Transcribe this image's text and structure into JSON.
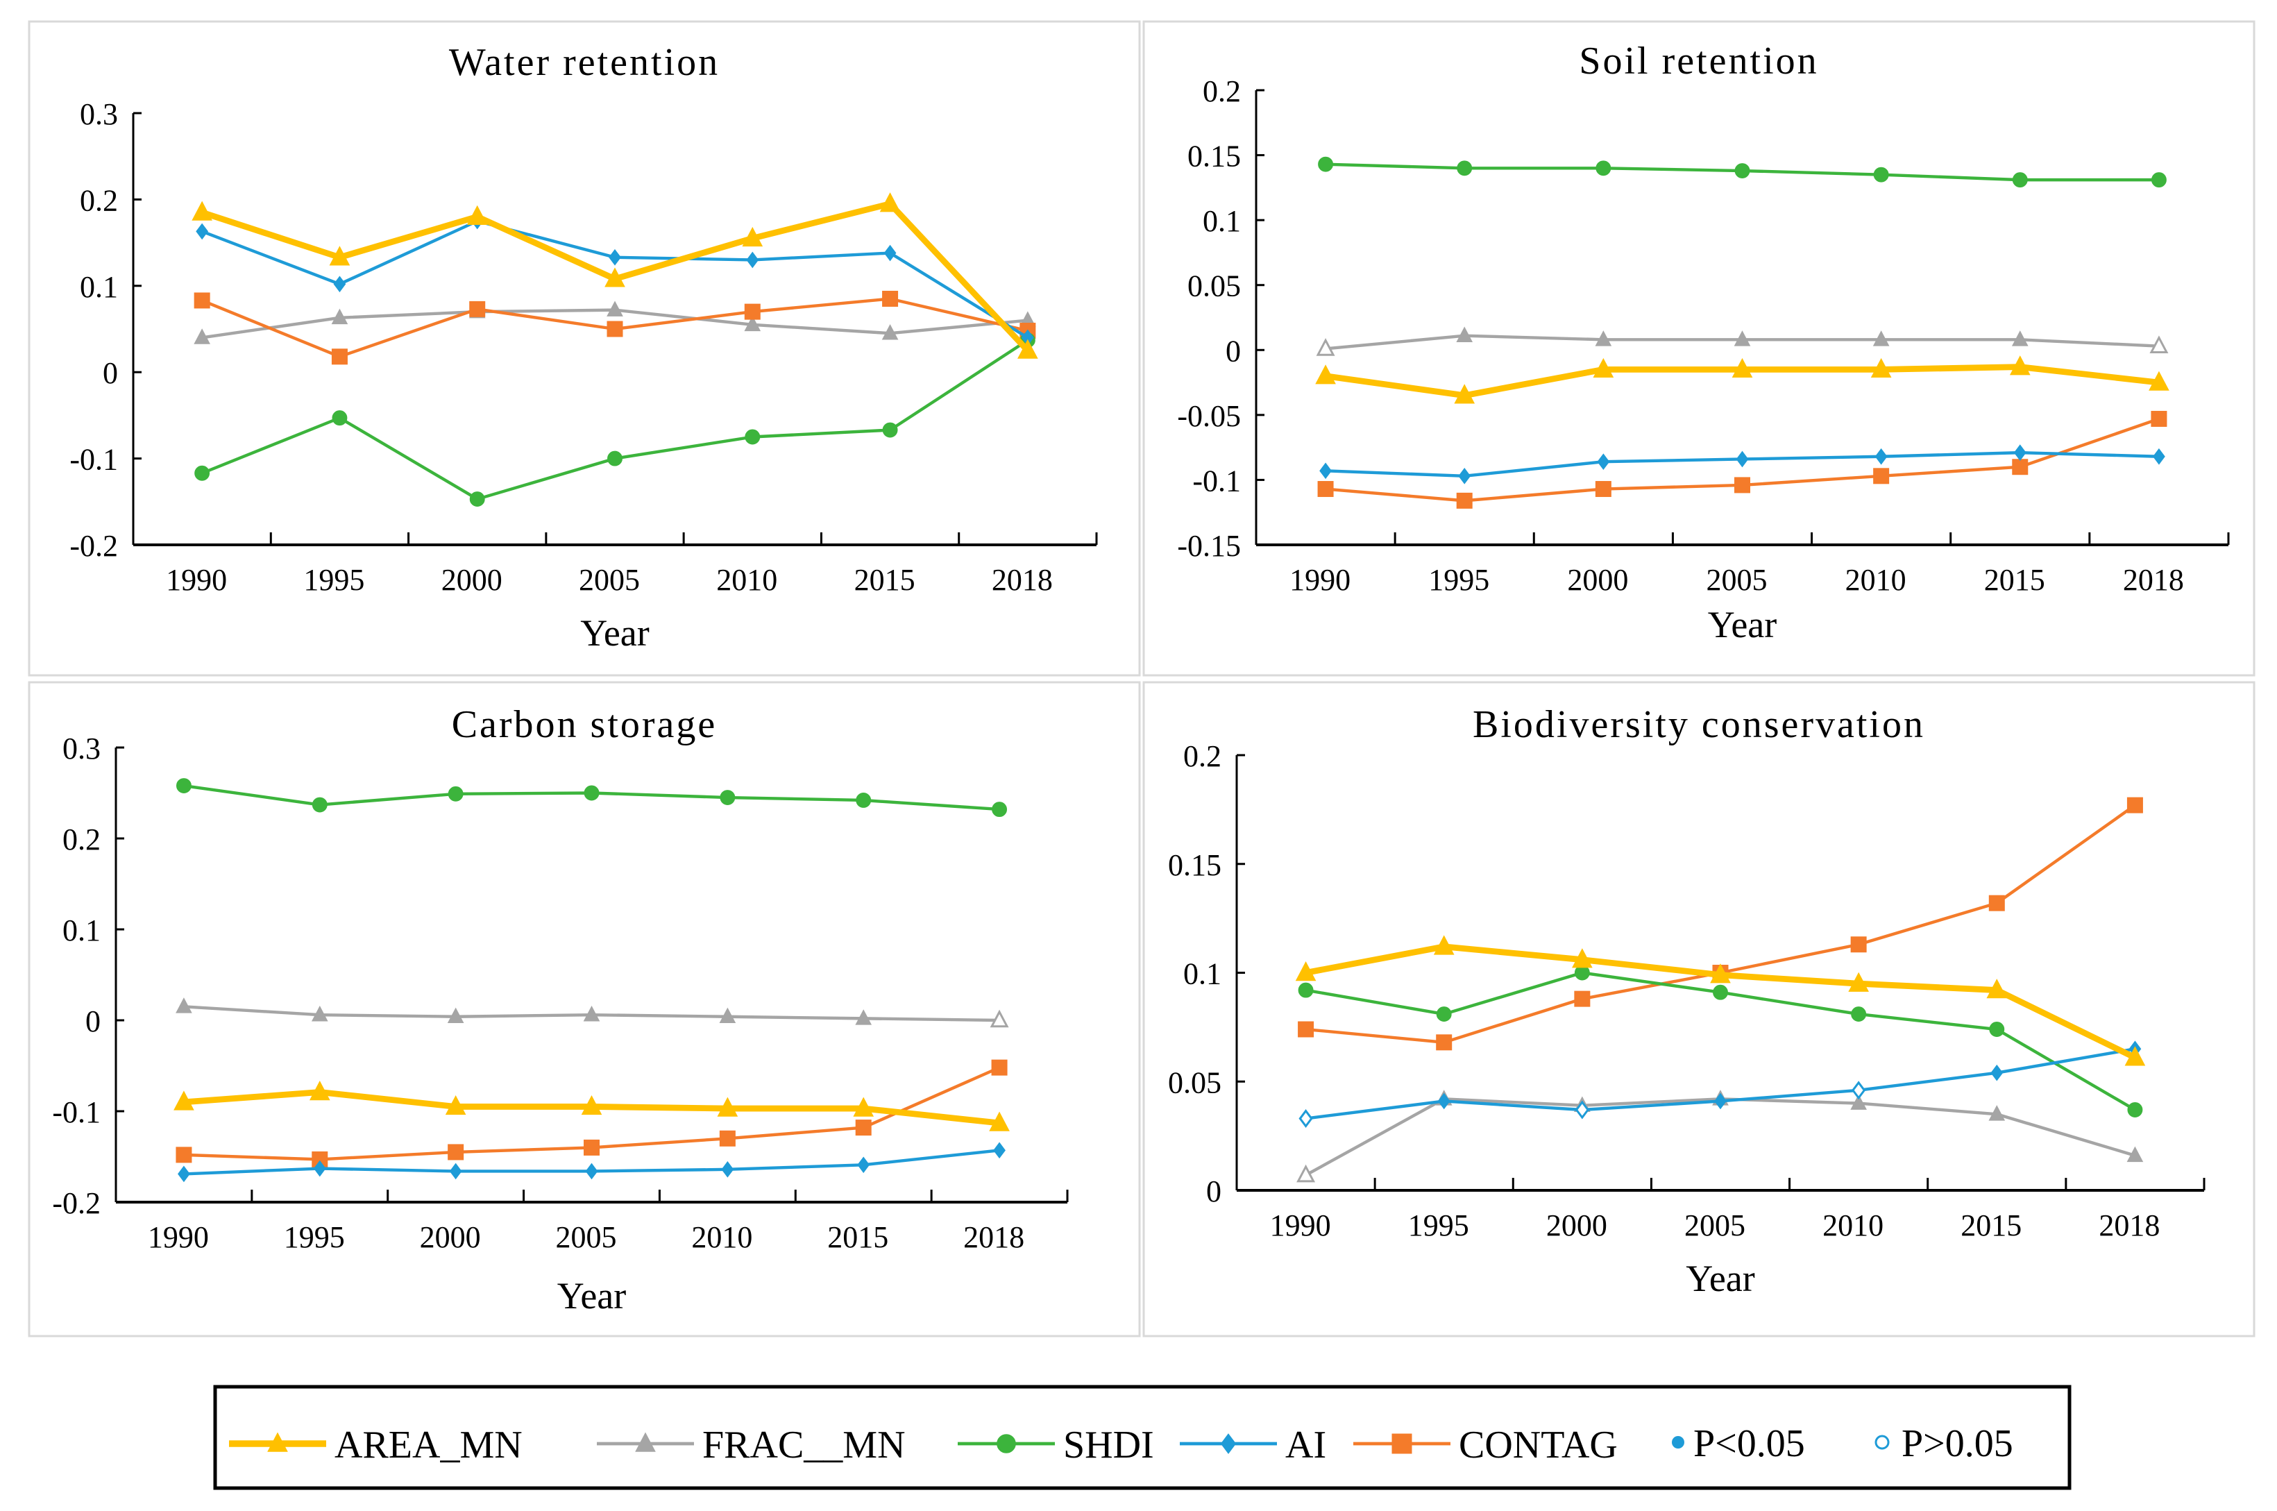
{
  "legend": {
    "items": [
      {
        "key": "AREA_MN",
        "label": "AREA_MN",
        "color": "#FFC000",
        "marker": "triangle",
        "width": 4
      },
      {
        "key": "FRAC_MN",
        "label": "FRAC__MN",
        "color": "#A5A5A5",
        "marker": "triangle",
        "width": 2
      },
      {
        "key": "SHDI",
        "label": "SHDI",
        "color": "#3CB43C",
        "marker": "circle",
        "width": 2
      },
      {
        "key": "AI",
        "label": "AI",
        "color": "#1E9BD7",
        "marker": "diamond",
        "width": 2
      },
      {
        "key": "CONTAG",
        "label": "CONTAG",
        "color": "#F47B2A",
        "marker": "square",
        "width": 2
      }
    ],
    "sig_label": "P<0.05",
    "nonsig_label": "P>0.05"
  },
  "chart_data": [
    {
      "type": "line",
      "title": "Water retention",
      "xlabel": "Year",
      "ylabel": "",
      "categories": [
        "1990",
        "1995",
        "2000",
        "2005",
        "2010",
        "2015",
        "2018"
      ],
      "ylim": [
        -0.2,
        0.3
      ],
      "yticks": [
        -0.2,
        -0.1,
        0,
        0.1,
        0.2,
        0.3
      ],
      "ytick_labels": [
        "-0.2",
        "-0.1",
        "0",
        "0.1",
        "0.2",
        "0.3"
      ],
      "series": [
        {
          "name": "FRAC_MN",
          "values": [
            0.04,
            0.063,
            0.07,
            0.072,
            0.055,
            0.045,
            0.06
          ],
          "hollow": []
        },
        {
          "name": "CONTAG",
          "values": [
            0.083,
            0.018,
            0.073,
            0.05,
            0.07,
            0.085,
            0.048
          ],
          "hollow": []
        },
        {
          "name": "SHDI",
          "values": [
            -0.117,
            -0.053,
            -0.147,
            -0.1,
            -0.075,
            -0.067,
            0.037
          ],
          "hollow": []
        },
        {
          "name": "AI",
          "values": [
            0.163,
            0.102,
            0.175,
            0.133,
            0.13,
            0.138,
            0.04
          ],
          "hollow": []
        },
        {
          "name": "AREA_MN",
          "values": [
            0.185,
            0.133,
            0.18,
            0.108,
            0.155,
            0.195,
            0.025
          ],
          "hollow": []
        }
      ]
    },
    {
      "type": "line",
      "title": "Soil retention",
      "xlabel": "Year",
      "ylabel": "",
      "categories": [
        "1990",
        "1995",
        "2000",
        "2005",
        "2010",
        "2015",
        "2018"
      ],
      "ylim": [
        -0.15,
        0.2
      ],
      "yticks": [
        -0.15,
        -0.1,
        -0.05,
        0,
        0.05,
        0.1,
        0.15,
        0.2
      ],
      "ytick_labels": [
        "-0.15",
        "-0.1",
        "-0.05",
        "0",
        "0.05",
        "0.1",
        "0.15",
        "0.2"
      ],
      "series": [
        {
          "name": "FRAC_MN",
          "values": [
            0.001,
            0.011,
            0.008,
            0.008,
            0.008,
            0.008,
            0.003
          ],
          "hollow": [
            0,
            6
          ]
        },
        {
          "name": "CONTAG",
          "values": [
            -0.107,
            -0.116,
            -0.107,
            -0.104,
            -0.097,
            -0.09,
            -0.053
          ],
          "hollow": []
        },
        {
          "name": "SHDI",
          "values": [
            0.143,
            0.14,
            0.14,
            0.138,
            0.135,
            0.131,
            0.131
          ],
          "hollow": []
        },
        {
          "name": "AI",
          "values": [
            -0.093,
            -0.097,
            -0.086,
            -0.084,
            -0.082,
            -0.079,
            -0.082
          ],
          "hollow": []
        },
        {
          "name": "AREA_MN",
          "values": [
            -0.02,
            -0.035,
            -0.015,
            -0.015,
            -0.015,
            -0.013,
            -0.025
          ],
          "hollow": []
        }
      ]
    },
    {
      "type": "line",
      "title": "Carbon storage",
      "xlabel": "Year",
      "ylabel": "",
      "categories": [
        "1990",
        "1995",
        "2000",
        "2005",
        "2010",
        "2015",
        "2018"
      ],
      "ylim": [
        -0.2,
        0.3
      ],
      "yticks": [
        -0.2,
        -0.1,
        0,
        0.1,
        0.2,
        0.3
      ],
      "ytick_labels": [
        "-0.2",
        "-0.1",
        "0",
        "0.1",
        "0.2",
        "0.3"
      ],
      "series": [
        {
          "name": "FRAC_MN",
          "values": [
            0.015,
            0.006,
            0.004,
            0.006,
            0.004,
            0.002,
            0.0
          ],
          "hollow": [
            6
          ]
        },
        {
          "name": "CONTAG",
          "values": [
            -0.148,
            -0.153,
            -0.145,
            -0.14,
            -0.13,
            -0.118,
            -0.052
          ],
          "hollow": []
        },
        {
          "name": "SHDI",
          "values": [
            0.258,
            0.237,
            0.249,
            0.25,
            0.245,
            0.242,
            0.232
          ],
          "hollow": []
        },
        {
          "name": "AI",
          "values": [
            -0.169,
            -0.163,
            -0.166,
            -0.166,
            -0.164,
            -0.159,
            -0.143
          ],
          "hollow": []
        },
        {
          "name": "AREA_MN",
          "values": [
            -0.09,
            -0.079,
            -0.095,
            -0.095,
            -0.097,
            -0.097,
            -0.113
          ],
          "hollow": []
        }
      ]
    },
    {
      "type": "line",
      "title": "Biodiversity conservation",
      "xlabel": "Year",
      "ylabel": "",
      "categories": [
        "1990",
        "1995",
        "2000",
        "2005",
        "2010",
        "2015",
        "2018"
      ],
      "ylim": [
        0,
        0.2
      ],
      "yticks": [
        0,
        0.05,
        0.1,
        0.15,
        0.2
      ],
      "ytick_labels": [
        "0",
        "0.05",
        "0.1",
        "0.15",
        "0.2"
      ],
      "series": [
        {
          "name": "FRAC_MN",
          "values": [
            0.007,
            0.042,
            0.039,
            0.042,
            0.04,
            0.035,
            0.016
          ],
          "hollow": [
            0
          ]
        },
        {
          "name": "CONTAG",
          "values": [
            0.074,
            0.068,
            0.088,
            0.1,
            0.113,
            0.132,
            0.177
          ],
          "hollow": []
        },
        {
          "name": "SHDI",
          "values": [
            0.092,
            0.081,
            0.1,
            0.091,
            0.081,
            0.074,
            0.037
          ],
          "hollow": []
        },
        {
          "name": "AI",
          "values": [
            0.033,
            0.041,
            0.037,
            0.041,
            0.046,
            0.054,
            0.065
          ],
          "hollow": [
            0,
            2,
            4
          ]
        },
        {
          "name": "AREA_MN",
          "values": [
            0.1,
            0.112,
            0.106,
            0.099,
            0.095,
            0.092,
            0.061
          ],
          "hollow": []
        }
      ]
    }
  ]
}
